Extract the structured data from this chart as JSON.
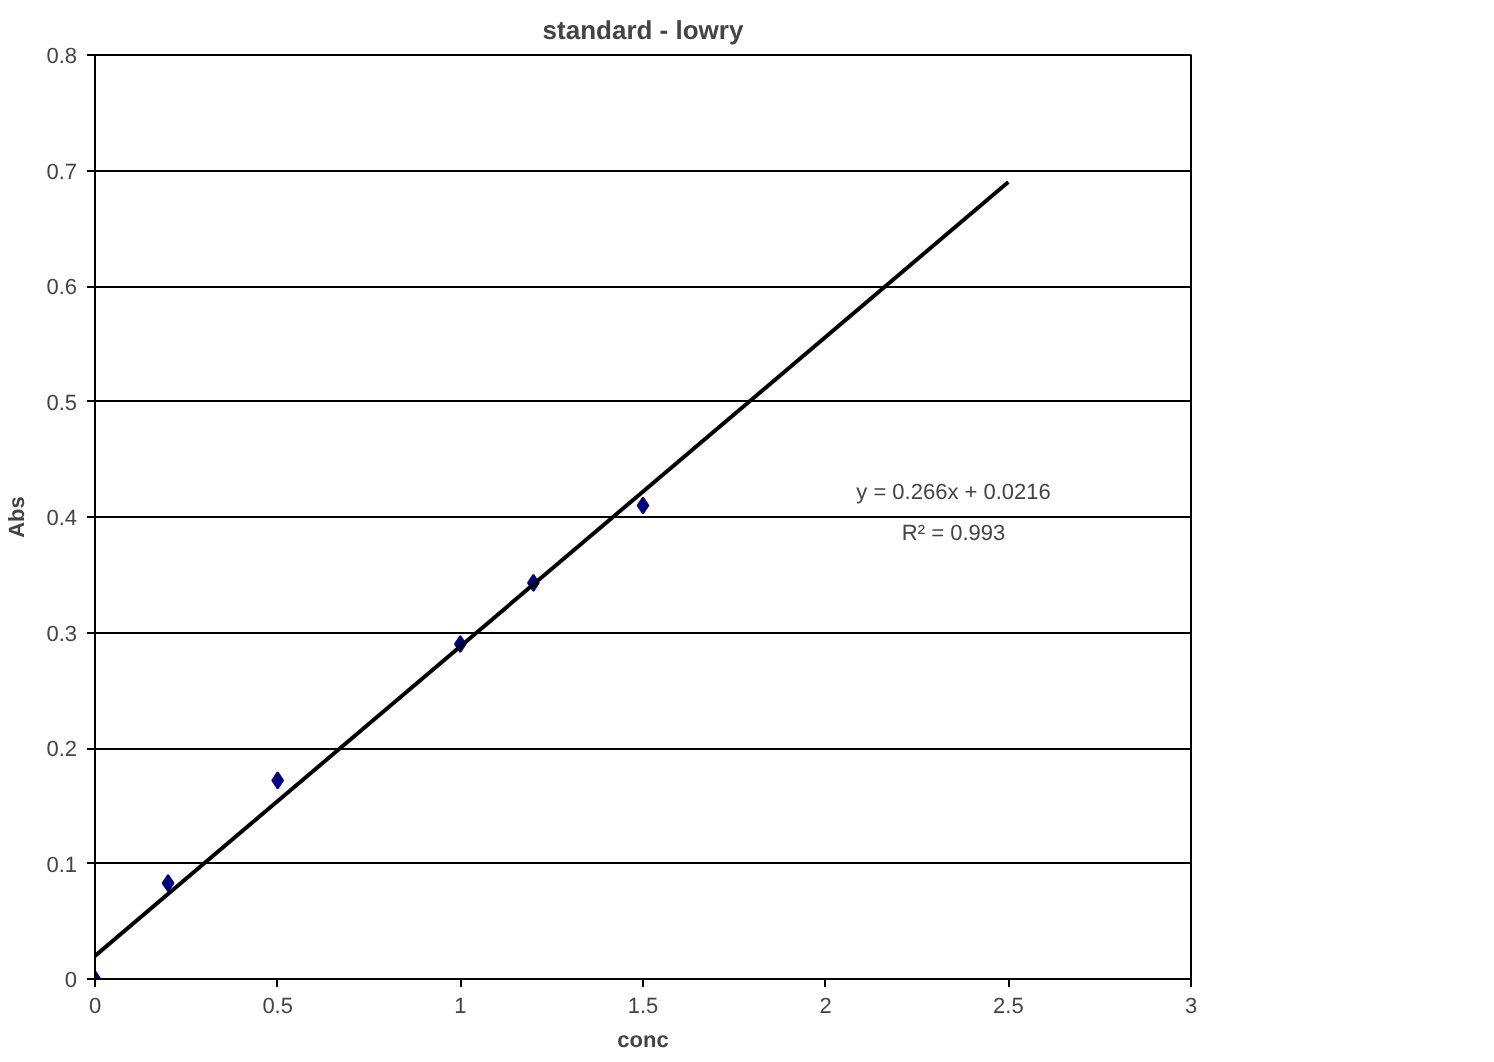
{
  "chart_data": {
    "type": "scatter",
    "title": "standard - lowry",
    "xlabel": "conc",
    "ylabel": "Abs",
    "series": [
      {
        "color": "#000080",
        "marker": "diamond",
        "x": [
          0,
          0.2,
          0.5,
          1,
          1.2,
          1.5
        ],
        "values": [
          0,
          0.083,
          0.172,
          0.29,
          0.343,
          0.41
        ]
      },
      {
        "type": "line",
        "color": "#000000",
        "marker": "none",
        "line_style": "solid",
        "x": [
          0,
          2.5
        ],
        "values": [
          0.02,
          0.69
        ]
      }
    ],
    "xlim": [
      0,
      3
    ],
    "xticks": [
      0,
      0.5,
      1,
      1.5,
      2,
      2.5,
      3
    ],
    "ylim": [
      0,
      0.8
    ],
    "yticks": [
      0,
      0.1,
      0.2,
      0.3,
      0.4,
      0.5,
      0.6,
      0.7,
      0.8
    ],
    "grid": "y",
    "annotations": [
      "y = 0.266x + 0.0216",
      "R² = 0.993"
    ]
  }
}
